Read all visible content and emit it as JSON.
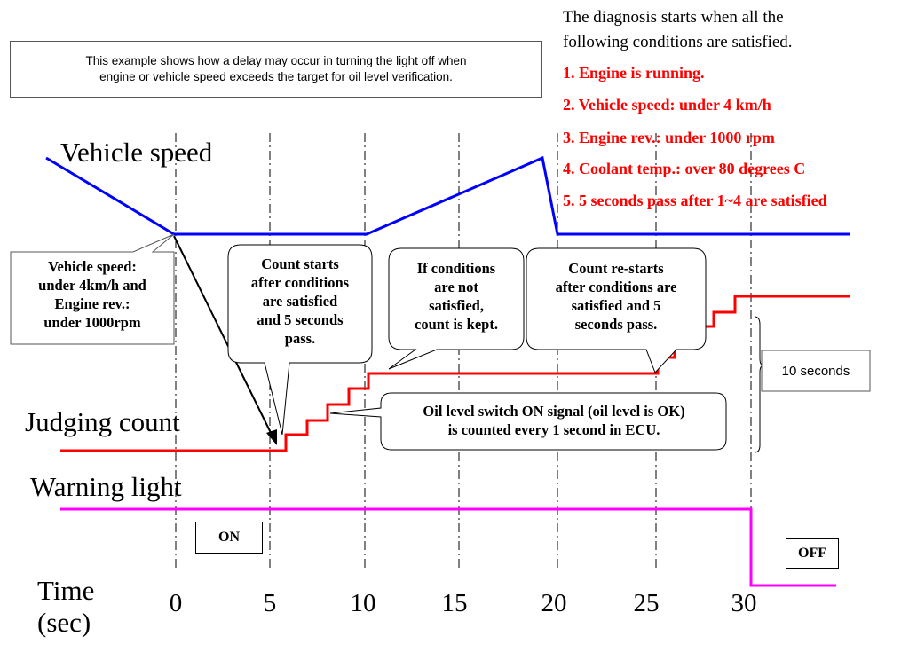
{
  "conditions": {
    "intro_line1": "The diagnosis starts when all the",
    "intro_line2": "following conditions are satisfied.",
    "items": [
      "1. Engine is running.",
      "2. Vehicle speed: under 4 km/h",
      "3. Engine rev.: under 1000 rpm",
      "4. Coolant temp.: over 80 degrees C",
      "5. 5 seconds pass after 1~4 are satisfied"
    ]
  },
  "note": {
    "line1": "This example shows how a delay may occur in turning the light off when",
    "line2": "engine or vehicle speed exceeds the target for oil level verification."
  },
  "labels": {
    "vehicle_speed": "Vehicle speed",
    "judging_count": "Judging count",
    "warning_light": "Warning light",
    "time_line1": "Time",
    "time_line2": "(sec)"
  },
  "callouts": {
    "speed_cond": [
      "Vehicle speed:",
      "under 4km/h and",
      "Engine rev.:",
      "under 1000rpm"
    ],
    "count_starts": [
      "Count starts",
      "after conditions",
      "are satisfied",
      "and 5 seconds",
      "pass."
    ],
    "count_kept": [
      "If conditions",
      "are not",
      "satisfied,",
      "count is kept."
    ],
    "count_restarts": [
      "Count re-starts",
      "after conditions are",
      "satisfied and 5",
      "seconds pass."
    ],
    "oil_signal": [
      "Oil level switch ON signal (oil level is OK)",
      "is counted every 1 second in ECU."
    ],
    "ten_seconds": "10 seconds"
  },
  "badges": {
    "on": "ON",
    "off": "OFF"
  },
  "axis": {
    "ticks": [
      "0",
      "5",
      "10",
      "15",
      "20",
      "25",
      "30"
    ]
  },
  "colors": {
    "vehicle_speed": "#0000ff",
    "judging_count": "#ff0000",
    "warning_light": "#ff00ff",
    "conditions_text": "#ff0000"
  }
}
